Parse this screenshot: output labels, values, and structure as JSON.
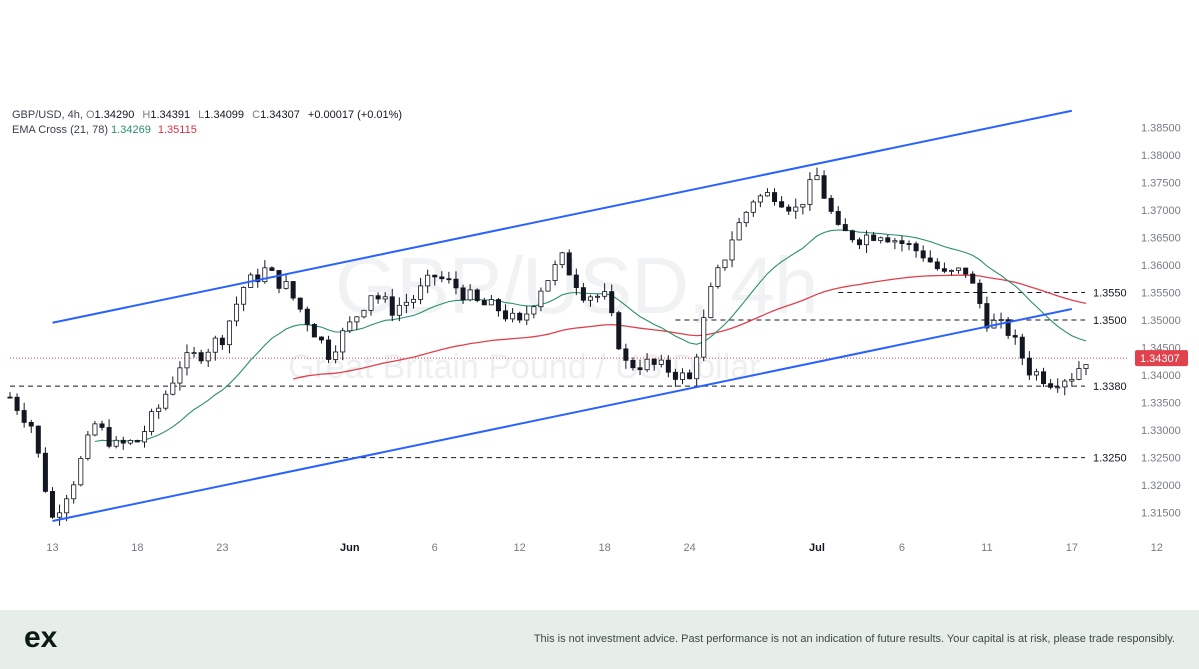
{
  "legend": {
    "symbol": "GBP/USD, 4h,",
    "o_label": "O",
    "o_value": "1.34290",
    "h_label": "H",
    "h_value": "1.34391",
    "l_label": "L",
    "l_value": "1.34099",
    "c_label": "C",
    "c_value": "1.34307",
    "change": "+0.00017 (+0.01%)",
    "ema_label": "EMA Cross (21, 78)",
    "ema_fast_value": "1.34269",
    "ema_slow_value": "1.35115"
  },
  "watermark": {
    "symbol": "GBP/USD, 4h",
    "name": "Great Britain Pound / US Dollar"
  },
  "footer": {
    "logo_text": "ex",
    "disclaimer": "This is not investment advice. Past performance is not an indication of future results. Your capital is at risk, please trade responsibly."
  },
  "colors": {
    "up_candle": "#ffffff",
    "down_candle": "#131722",
    "channel": "#2962ff",
    "ema_fast": "#2a8f6a",
    "ema_slow": "#e0414c",
    "last_price_bg": "#e0414c",
    "footer_bg": "#e7ede9"
  },
  "chart_data": {
    "type": "candlestick",
    "symbol": "GBP/USD",
    "timeframe": "4h",
    "x_ticks": [
      {
        "label": "13",
        "i": 6
      },
      {
        "label": "18",
        "i": 18
      },
      {
        "label": "23",
        "i": 30
      },
      {
        "label": "Jun",
        "i": 48
      },
      {
        "label": "6",
        "i": 60
      },
      {
        "label": "12",
        "i": 72
      },
      {
        "label": "18",
        "i": 84
      },
      {
        "label": "24",
        "i": 96
      },
      {
        "label": "Jul",
        "i": 114
      },
      {
        "label": "6",
        "i": 126
      },
      {
        "label": "11",
        "i": 138
      },
      {
        "label": "17",
        "i": 150
      },
      {
        "label": "12",
        "i": 162
      }
    ],
    "y_ticks": [
      "1.38500",
      "1.38000",
      "1.37500",
      "1.37000",
      "1.36500",
      "1.36000",
      "1.35500",
      "1.35000",
      "1.34500",
      "1.34000",
      "1.33500",
      "1.33000",
      "1.32500",
      "1.32000",
      "1.31500"
    ],
    "ylim": [
      1.3115,
      1.3885
    ],
    "last_price": "1.34307",
    "last_price_value": 1.34307,
    "horizontal_levels": [
      {
        "label": "1.3550",
        "value": 1.355,
        "from_i": 117
      },
      {
        "label": "1.3500",
        "value": 1.35,
        "from_i": 94
      },
      {
        "label": "1.3380",
        "value": 1.338,
        "from_i": 0
      },
      {
        "label": "1.3250",
        "value": 1.325,
        "from_i": 14
      }
    ],
    "channel": [
      {
        "name": "upper",
        "from": {
          "i": 6,
          "y": 1.3495
        },
        "to": {
          "i": 150,
          "y": 1.388
        }
      },
      {
        "name": "lower",
        "from": {
          "i": 6,
          "y": 1.3135
        },
        "to": {
          "i": 150,
          "y": 1.352
        }
      }
    ],
    "ohlc_path": [
      [
        0,
        1.336
      ],
      [
        3,
        1.331
      ],
      [
        6,
        1.314
      ],
      [
        9,
        1.321
      ],
      [
        12,
        1.331
      ],
      [
        15,
        1.327
      ],
      [
        18,
        1.328
      ],
      [
        21,
        1.334
      ],
      [
        24,
        1.342
      ],
      [
        27,
        1.344
      ],
      [
        30,
        1.347
      ],
      [
        33,
        1.356
      ],
      [
        36,
        1.359
      ],
      [
        39,
        1.356
      ],
      [
        42,
        1.35
      ],
      [
        45,
        1.344
      ],
      [
        48,
        1.349
      ],
      [
        51,
        1.355
      ],
      [
        54,
        1.352
      ],
      [
        57,
        1.354
      ],
      [
        60,
        1.358
      ],
      [
        63,
        1.356
      ],
      [
        66,
        1.353
      ],
      [
        69,
        1.352
      ],
      [
        72,
        1.349
      ],
      [
        75,
        1.356
      ],
      [
        78,
        1.361
      ],
      [
        81,
        1.355
      ],
      [
        84,
        1.354
      ],
      [
        87,
        1.342
      ],
      [
        90,
        1.342
      ],
      [
        93,
        1.341
      ],
      [
        96,
        1.339
      ],
      [
        99,
        1.355
      ],
      [
        102,
        1.365
      ],
      [
        105,
        1.372
      ],
      [
        108,
        1.373
      ],
      [
        111,
        1.37
      ],
      [
        114,
        1.376
      ],
      [
        117,
        1.366
      ],
      [
        120,
        1.365
      ],
      [
        123,
        1.366
      ],
      [
        126,
        1.364
      ],
      [
        129,
        1.362
      ],
      [
        132,
        1.358
      ],
      [
        135,
        1.359
      ],
      [
        138,
        1.35
      ],
      [
        141,
        1.348
      ],
      [
        144,
        1.341
      ],
      [
        147,
        1.339
      ],
      [
        150,
        1.34
      ],
      [
        152,
        1.343
      ]
    ],
    "candles_count": 153
  }
}
